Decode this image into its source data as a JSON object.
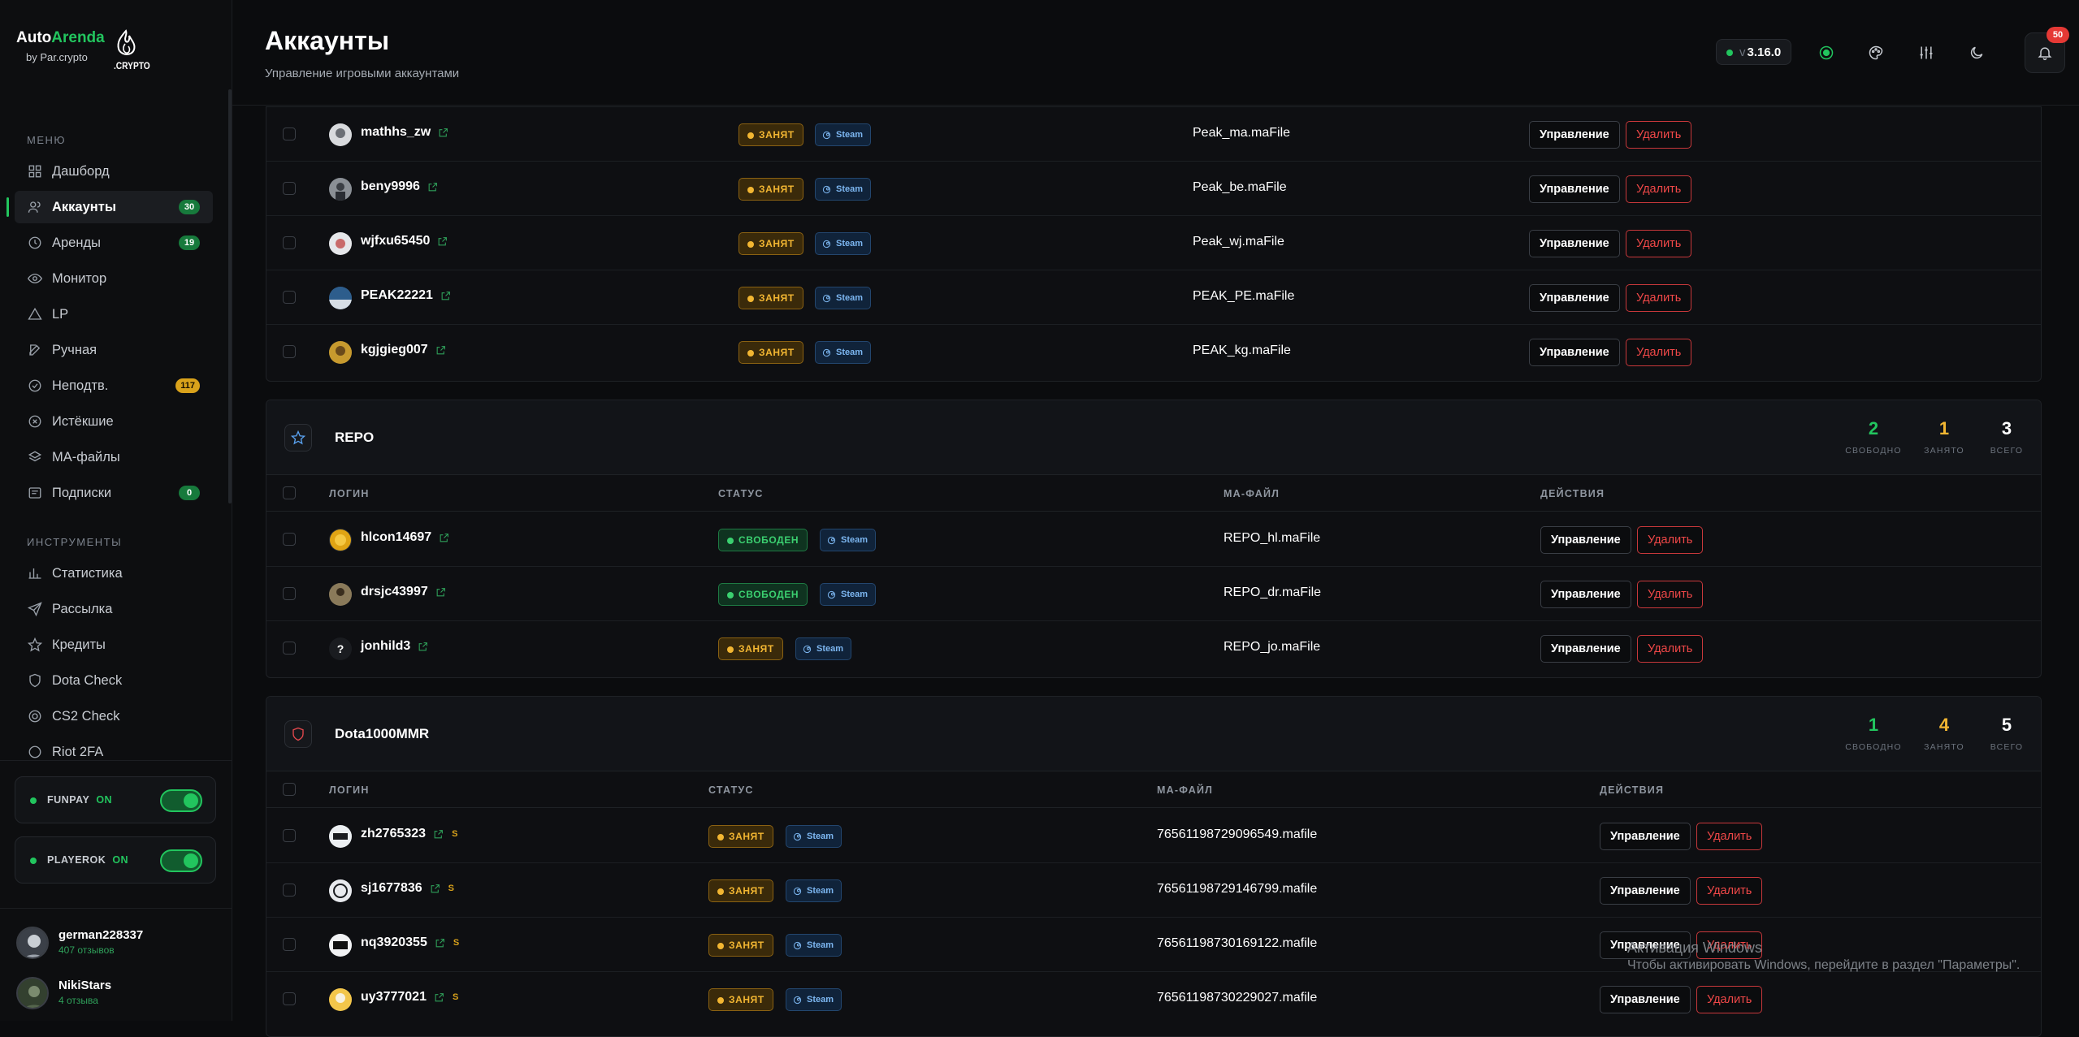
{
  "brand": {
    "name_a": "Auto",
    "name_b": "Arenda",
    "sub": "by Par.crypto",
    "mark": ".CRYPTO"
  },
  "sidebar": {
    "menu_heading": "МЕНЮ",
    "items": [
      {
        "label": "Дашборд",
        "icon": "grid-icon",
        "badge": ""
      },
      {
        "label": "Аккаунты",
        "icon": "users-icon",
        "badge": "30",
        "active": true
      },
      {
        "label": "Аренды",
        "icon": "clock-icon",
        "badge": "19"
      },
      {
        "label": "Монитор",
        "icon": "eye-icon",
        "badge": ""
      },
      {
        "label": "LP",
        "icon": "triangle-icon",
        "badge": ""
      },
      {
        "label": "Ручная",
        "icon": "edit-icon",
        "badge": ""
      },
      {
        "label": "Неподтв.",
        "icon": "check-circle-icon",
        "badge": "117"
      },
      {
        "label": "Истёкшие",
        "icon": "x-circle-icon",
        "badge": ""
      },
      {
        "label": "MA-файлы",
        "icon": "layers-icon",
        "badge": ""
      },
      {
        "label": "Подписки",
        "icon": "message-icon",
        "badge": "0"
      }
    ],
    "tools_heading": "ИНСТРУМЕНТЫ",
    "tools": [
      {
        "label": "Статистика",
        "icon": "bar-chart-icon"
      },
      {
        "label": "Рассылка",
        "icon": "send-icon"
      },
      {
        "label": "Кредиты",
        "icon": "star-icon"
      },
      {
        "label": "Dota Check",
        "icon": "shield-icon"
      },
      {
        "label": "CS2 Check",
        "icon": "target-icon"
      },
      {
        "label": "Riot 2FA",
        "icon": "circle-icon"
      }
    ],
    "toggles": [
      {
        "label": "FUNPAY",
        "state": "ON"
      },
      {
        "label": "PLAYEROK",
        "state": "ON"
      }
    ],
    "users": [
      {
        "name": "german228337",
        "sub": "407 отзывов"
      },
      {
        "name": "NikiStars",
        "sub": "4 отзыва"
      }
    ]
  },
  "header": {
    "title": "Аккаунты",
    "subtitle": "Управление игровыми аккаунтами",
    "version_prefix": "v",
    "version": "3.16.0",
    "notifications": "50"
  },
  "labels": {
    "manage": "Управление",
    "delete": "Удалить",
    "busy": "ЗАНЯТ",
    "free": "СВОБОДЕН",
    "steam": "Steam",
    "col_login": "ЛОГИН",
    "col_status": "СТАТУС",
    "col_mafile": "MA-ФАЙЛ",
    "col_actions": "ДЕЙСТВИЯ",
    "stat_free": "СВОБОДНО",
    "stat_busy": "ЗАНЯТО",
    "stat_total": "ВСЕГО",
    "s": "S"
  },
  "group_peak_rows": [
    {
      "login": "mathhs_zw",
      "status": "busy",
      "mafile": "Peak_ma.maFile"
    },
    {
      "login": "beny9996",
      "status": "busy",
      "mafile": "Peak_be.maFile"
    },
    {
      "login": "wjfxu65450",
      "status": "busy",
      "mafile": "Peak_wj.maFile"
    },
    {
      "login": "PEAK22221",
      "status": "busy",
      "mafile": "PEAK_PE.maFile"
    },
    {
      "login": "kgjgieg007",
      "status": "busy",
      "mafile": "PEAK_kg.maFile"
    }
  ],
  "group_repo": {
    "name": "REPO",
    "free": "2",
    "busy": "1",
    "total": "3",
    "rows": [
      {
        "login": "hlcon14697",
        "status": "free",
        "mafile": "REPO_hl.maFile"
      },
      {
        "login": "drsjc43997",
        "status": "free",
        "mafile": "REPO_dr.maFile"
      },
      {
        "login": "jonhild3",
        "status": "busy",
        "mafile": "REPO_jo.maFile",
        "avatar": "?"
      }
    ]
  },
  "group_dota": {
    "name": "Dota1000MMR",
    "free": "1",
    "busy": "4",
    "total": "5",
    "rows": [
      {
        "login": "zh2765323",
        "status": "busy",
        "mafile": "76561198729096549.mafile"
      },
      {
        "login": "sj1677836",
        "status": "busy",
        "mafile": "76561198729146799.mafile"
      },
      {
        "login": "nq3920355",
        "status": "busy",
        "mafile": "76561198730169122.mafile"
      },
      {
        "login": "uy3777021",
        "status": "busy",
        "mafile": "76561198730229027.mafile"
      }
    ]
  },
  "watermark": {
    "line1": "Активация Windows",
    "line2": "Чтобы активировать Windows, перейдите в раздел \"Параметры\"."
  },
  "colors": {
    "accent": "#22c55e",
    "busy": "#f2b632",
    "danger": "#f04848",
    "steam": "#7cb6f0"
  }
}
